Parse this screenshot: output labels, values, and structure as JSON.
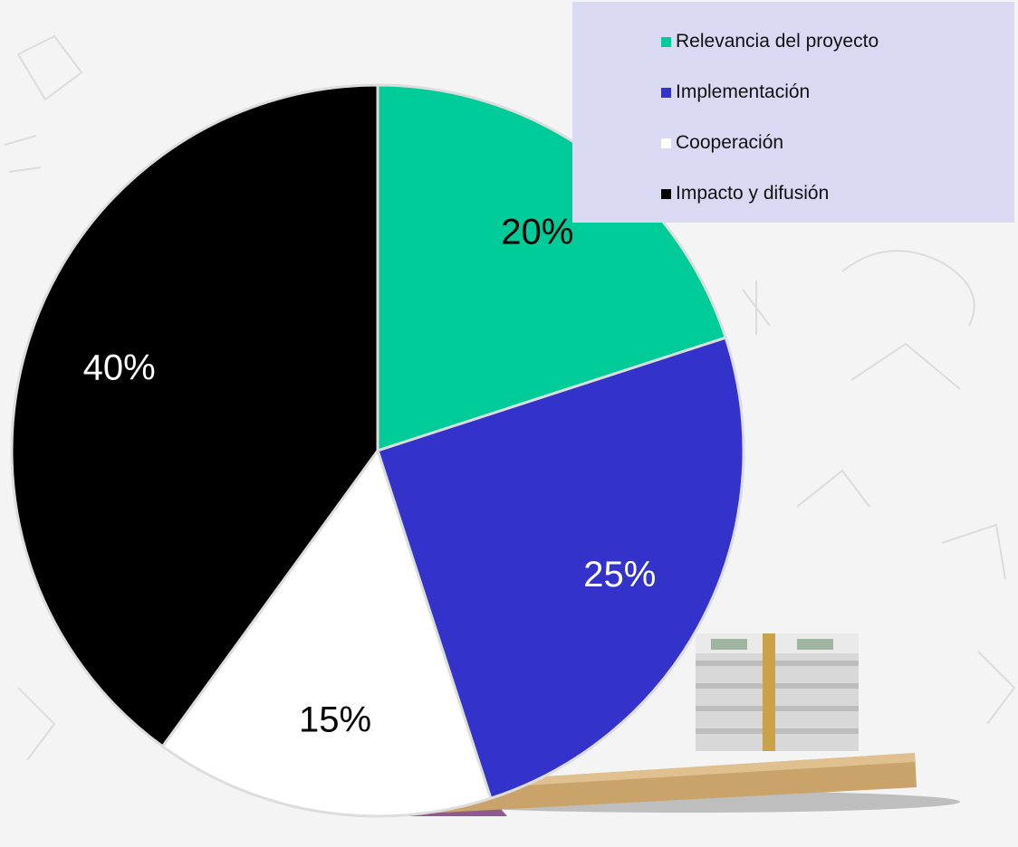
{
  "chart_data": {
    "type": "pie",
    "categories": [
      "Relevancia del proyecto",
      "Implementación",
      "Cooperación",
      "Impacto y difusión"
    ],
    "values": [
      20,
      25,
      15,
      40
    ],
    "data_labels": [
      "20%",
      "25%",
      "15%",
      "40%"
    ],
    "colors": [
      "#00cc99",
      "#3333cc",
      "#ffffff",
      "#000000"
    ],
    "label_colors": [
      "#000000",
      "#ffffff",
      "#000000",
      "#ffffff"
    ],
    "legend_position": "top-right",
    "title": ""
  },
  "legend": {
    "items": [
      {
        "label": "Relevancia del proyecto",
        "color": "#00cc99"
      },
      {
        "label": "Implementación",
        "color": "#3333cc"
      },
      {
        "label": "Cooperación",
        "color": "#ffffff"
      },
      {
        "label": "Impacto y difusión",
        "color": "#000000"
      }
    ]
  },
  "decoration": {
    "image": "money-stack-on-seesaw-icon"
  }
}
